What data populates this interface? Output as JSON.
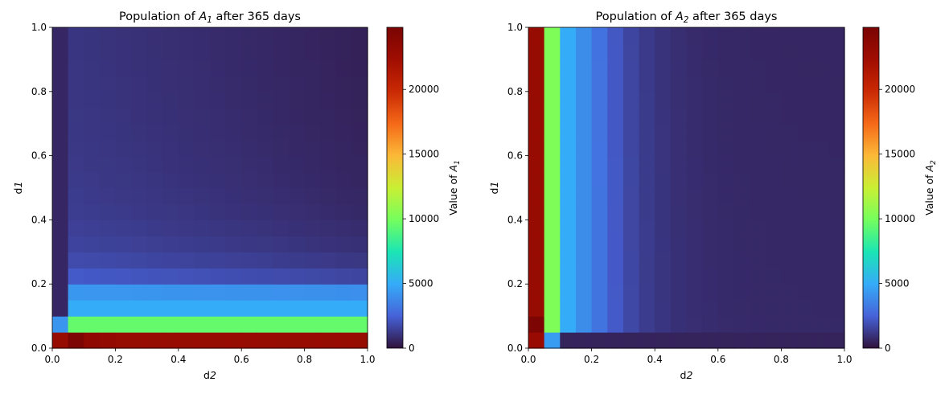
{
  "chart_data": [
    {
      "type": "heatmap",
      "title": "Population of A₁ after 365 days",
      "title_parts": [
        "Population of ",
        "A",
        "1",
        " after 365 days"
      ],
      "xlabel": "d₂",
      "xlabel_parts": [
        "d",
        "2"
      ],
      "ylabel": "d₁",
      "ylabel_parts": [
        "d",
        "1"
      ],
      "xlim": [
        0,
        1
      ],
      "ylim": [
        0,
        1
      ],
      "x_ticks": [
        "0.0",
        "0.2",
        "0.4",
        "0.6",
        "0.8",
        "1.0"
      ],
      "y_ticks": [
        "0.0",
        "0.2",
        "0.4",
        "0.6",
        "0.8",
        "1.0"
      ],
      "grid": "20x20 cells, d1 and d2 from 0.0 to 1.0 in steps of 0.05",
      "colormap": "turbo",
      "colorbar": {
        "label": "Value of A₁",
        "label_parts": [
          "Value of ",
          "A",
          "1"
        ],
        "range": [
          0,
          24800
        ],
        "ticks": [
          "0",
          "5000",
          "10000",
          "15000",
          "20000"
        ]
      }
    },
    {
      "type": "heatmap",
      "title": "Population of A₂ after 365 days",
      "title_parts": [
        "Population of ",
        "A",
        "2",
        " after 365 days"
      ],
      "xlabel": "d₂",
      "xlabel_parts": [
        "d",
        "2"
      ],
      "ylabel": "d₁",
      "ylabel_parts": [
        "d",
        "1"
      ],
      "xlim": [
        0,
        1
      ],
      "ylim": [
        0,
        1
      ],
      "x_ticks": [
        "0.0",
        "0.2",
        "0.4",
        "0.6",
        "0.8",
        "1.0"
      ],
      "y_ticks": [
        "0.0",
        "0.2",
        "0.4",
        "0.6",
        "0.8",
        "1.0"
      ],
      "grid": "20x20 cells, d1 and d2 from 0.0 to 1.0 in steps of 0.05",
      "colormap": "turbo",
      "colorbar": {
        "label": "Value of A₂",
        "label_parts": [
          "Value of ",
          "A",
          "2"
        ],
        "range": [
          0,
          24800
        ],
        "ticks": [
          "0",
          "5000",
          "10000",
          "15000",
          "20000"
        ]
      }
    }
  ]
}
